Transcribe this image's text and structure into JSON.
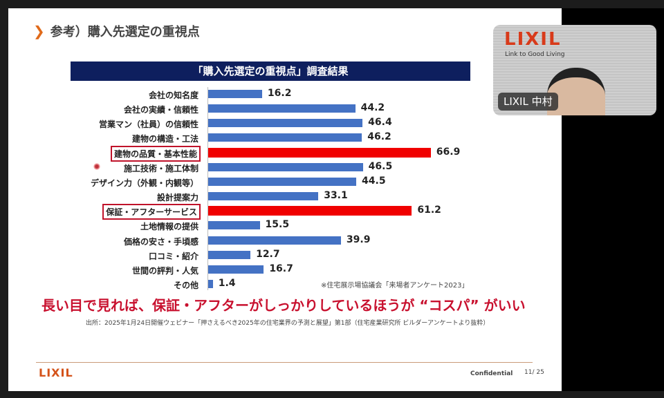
{
  "slide": {
    "title": "参考）購入先選定の重視点",
    "note": "※住宅展示場協議会「来場者アンケート2023」",
    "tagline": "長い目で見れば、保証・アフターがしっかりしているほうが “コスパ” がいい",
    "source": "出所：2025年1月24日開催ウェビナー「押さえるべき2025年の住宅業界の予測と展望」第1部（住宅産業研究所 ビルダーアンケートより抜粋）",
    "footer_logo": "LIXIL",
    "confidential": "Confidential",
    "page": "11",
    "total_pages": "/ 25"
  },
  "video": {
    "logo": "LIXIL",
    "slogan": "Link to Good Living",
    "participant_name": "LIXIL 中村"
  },
  "colors": {
    "bar": "#4472c4",
    "highlight": "#f00000",
    "title_bg": "#0e1f5e"
  },
  "chart_data": {
    "type": "bar",
    "orientation": "horizontal",
    "title": "「購入先選定の重視点」調査結果",
    "categories": [
      "会社の知名度",
      "会社の実績・信頼性",
      "営業マン（社員）の信頼性",
      "建物の構造・工法",
      "建物の品質・基本性能",
      "施工技術・施工体制",
      "デザイン力（外観・内観等）",
      "設計提案力",
      "保証・アフターサービス",
      "土地情報の提供",
      "価格の安さ・手頃感",
      "口コミ・紹介",
      "世間の評判・人気",
      "その他"
    ],
    "values": [
      16.2,
      44.2,
      46.4,
      46.2,
      66.9,
      46.5,
      44.5,
      33.1,
      61.2,
      15.5,
      39.9,
      12.7,
      16.7,
      1.4
    ],
    "labels": [
      "16.2",
      "44.2",
      "46.4",
      "46.2",
      "66.9",
      "46.5",
      "44.5",
      "33.1",
      "61.2",
      "15.5",
      "39.9",
      "12.7",
      "16.7",
      "1.4"
    ],
    "highlighted": [
      4,
      8
    ],
    "xlim": [
      0,
      70
    ],
    "grid": false,
    "legend": "none"
  }
}
